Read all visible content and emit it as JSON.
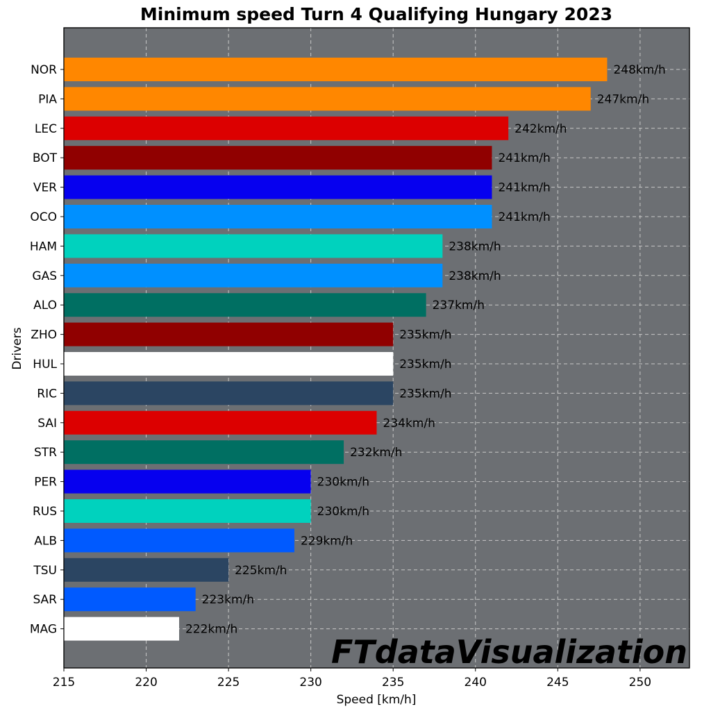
{
  "chart_data": {
    "type": "bar",
    "orientation": "horizontal",
    "title": "Minimum speed Turn 4 Qualifying Hungary 2023",
    "xlabel": "Speed [km/h]",
    "ylabel": "Drivers",
    "xlim": [
      215,
      253
    ],
    "xticks": [
      215,
      220,
      225,
      230,
      235,
      240,
      245,
      250
    ],
    "grid": true,
    "background_color": "#6c6f73",
    "label_suffix": "km/h",
    "categories": [
      "NOR",
      "PIA",
      "LEC",
      "BOT",
      "VER",
      "OCO",
      "HAM",
      "GAS",
      "ALO",
      "ZHO",
      "HUL",
      "RIC",
      "SAI",
      "STR",
      "PER",
      "RUS",
      "ALB",
      "TSU",
      "SAR",
      "MAG"
    ],
    "values": [
      248,
      247,
      242,
      241,
      241,
      241,
      238,
      238,
      237,
      235,
      235,
      235,
      234,
      232,
      230,
      230,
      229,
      225,
      223,
      222
    ],
    "data_labels": [
      "248km/h",
      "247km/h",
      "242km/h",
      "241km/h",
      "241km/h",
      "241km/h",
      "238km/h",
      "238km/h",
      "237km/h",
      "235km/h",
      "235km/h",
      "235km/h",
      "234km/h",
      "232km/h",
      "230km/h",
      "230km/h",
      "229km/h",
      "225km/h",
      "223km/h",
      "222km/h"
    ],
    "colors": [
      "#ff8700",
      "#ff8700",
      "#dc0000",
      "#900000",
      "#0600ef",
      "#0090ff",
      "#00d2be",
      "#0090ff",
      "#006f62",
      "#900000",
      "#ffffff",
      "#2b4562",
      "#dc0000",
      "#006f62",
      "#0600ef",
      "#00d2be",
      "#005aff",
      "#2b4562",
      "#005aff",
      "#ffffff"
    ]
  },
  "watermark": "FTdataVisualization"
}
